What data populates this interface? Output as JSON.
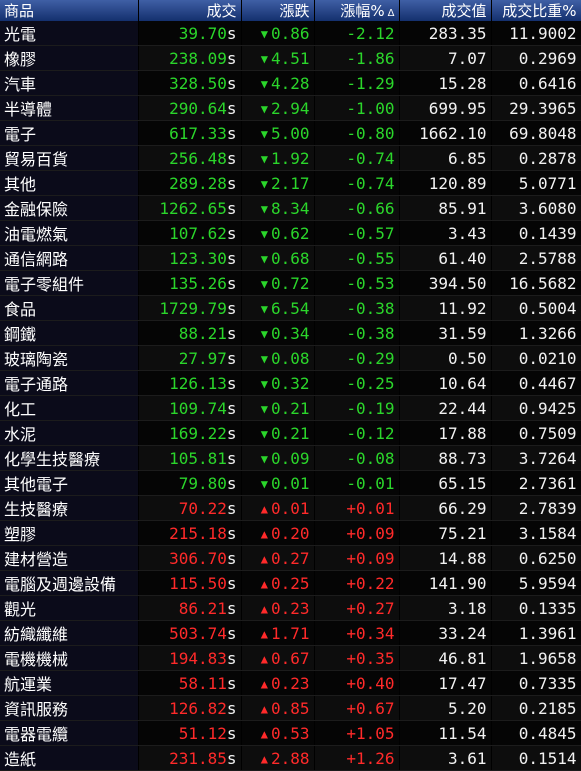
{
  "headers": [
    "商品",
    "成交",
    "漲跌",
    "漲幅%",
    "成交值",
    "成交比重%"
  ],
  "sort_indicator": "Δ",
  "colors": {
    "up": "#ff2a2a",
    "down": "#2bd62b"
  },
  "rows": [
    {
      "name": "光電",
      "price": "39.70",
      "flag": "s",
      "chg": "0.86",
      "dir": "down",
      "pct": "-2.12",
      "val": "283.35",
      "w": "11.9002"
    },
    {
      "name": "橡膠",
      "price": "238.09",
      "flag": "s",
      "chg": "4.51",
      "dir": "down",
      "pct": "-1.86",
      "val": "7.07",
      "w": "0.2969"
    },
    {
      "name": "汽車",
      "price": "328.50",
      "flag": "s",
      "chg": "4.28",
      "dir": "down",
      "pct": "-1.29",
      "val": "15.28",
      "w": "0.6416"
    },
    {
      "name": "半導體",
      "price": "290.64",
      "flag": "s",
      "chg": "2.94",
      "dir": "down",
      "pct": "-1.00",
      "val": "699.95",
      "w": "29.3965"
    },
    {
      "name": "電子",
      "price": "617.33",
      "flag": "s",
      "chg": "5.00",
      "dir": "down",
      "pct": "-0.80",
      "val": "1662.10",
      "w": "69.8048"
    },
    {
      "name": "貿易百貨",
      "price": "256.48",
      "flag": "s",
      "chg": "1.92",
      "dir": "down",
      "pct": "-0.74",
      "val": "6.85",
      "w": "0.2878"
    },
    {
      "name": "其他",
      "price": "289.28",
      "flag": "s",
      "chg": "2.17",
      "dir": "down",
      "pct": "-0.74",
      "val": "120.89",
      "w": "5.0771"
    },
    {
      "name": "金融保險",
      "price": "1262.65",
      "flag": "s",
      "chg": "8.34",
      "dir": "down",
      "pct": "-0.66",
      "val": "85.91",
      "w": "3.6080"
    },
    {
      "name": "油電燃氣",
      "price": "107.62",
      "flag": "s",
      "chg": "0.62",
      "dir": "down",
      "pct": "-0.57",
      "val": "3.43",
      "w": "0.1439"
    },
    {
      "name": "通信網路",
      "price": "123.30",
      "flag": "s",
      "chg": "0.68",
      "dir": "down",
      "pct": "-0.55",
      "val": "61.40",
      "w": "2.5788"
    },
    {
      "name": "電子零組件",
      "price": "135.26",
      "flag": "s",
      "chg": "0.72",
      "dir": "down",
      "pct": "-0.53",
      "val": "394.50",
      "w": "16.5682"
    },
    {
      "name": "食品",
      "price": "1729.79",
      "flag": "s",
      "chg": "6.54",
      "dir": "down",
      "pct": "-0.38",
      "val": "11.92",
      "w": "0.5004"
    },
    {
      "name": "鋼鐵",
      "price": "88.21",
      "flag": "s",
      "chg": "0.34",
      "dir": "down",
      "pct": "-0.38",
      "val": "31.59",
      "w": "1.3266"
    },
    {
      "name": "玻璃陶瓷",
      "price": "27.97",
      "flag": "s",
      "chg": "0.08",
      "dir": "down",
      "pct": "-0.29",
      "val": "0.50",
      "w": "0.0210"
    },
    {
      "name": "電子通路",
      "price": "126.13",
      "flag": "s",
      "chg": "0.32",
      "dir": "down",
      "pct": "-0.25",
      "val": "10.64",
      "w": "0.4467"
    },
    {
      "name": "化工",
      "price": "109.74",
      "flag": "s",
      "chg": "0.21",
      "dir": "down",
      "pct": "-0.19",
      "val": "22.44",
      "w": "0.9425"
    },
    {
      "name": "水泥",
      "price": "169.22",
      "flag": "s",
      "chg": "0.21",
      "dir": "down",
      "pct": "-0.12",
      "val": "17.88",
      "w": "0.7509"
    },
    {
      "name": "化學生技醫療",
      "price": "105.81",
      "flag": "s",
      "chg": "0.09",
      "dir": "down",
      "pct": "-0.08",
      "val": "88.73",
      "w": "3.7264"
    },
    {
      "name": "其他電子",
      "price": "79.80",
      "flag": "s",
      "chg": "0.01",
      "dir": "down",
      "pct": "-0.01",
      "val": "65.15",
      "w": "2.7361"
    },
    {
      "name": "生技醫療",
      "price": "70.22",
      "flag": "s",
      "chg": "0.01",
      "dir": "up",
      "pct": "+0.01",
      "val": "66.29",
      "w": "2.7839"
    },
    {
      "name": "塑膠",
      "price": "215.18",
      "flag": "s",
      "chg": "0.20",
      "dir": "up",
      "pct": "+0.09",
      "val": "75.21",
      "w": "3.1584"
    },
    {
      "name": "建材營造",
      "price": "306.70",
      "flag": "s",
      "chg": "0.27",
      "dir": "up",
      "pct": "+0.09",
      "val": "14.88",
      "w": "0.6250"
    },
    {
      "name": "電腦及週邊設備",
      "price": "115.50",
      "flag": "s",
      "chg": "0.25",
      "dir": "up",
      "pct": "+0.22",
      "val": "141.90",
      "w": "5.9594"
    },
    {
      "name": "觀光",
      "price": "86.21",
      "flag": "s",
      "chg": "0.23",
      "dir": "up",
      "pct": "+0.27",
      "val": "3.18",
      "w": "0.1335"
    },
    {
      "name": "紡織纖維",
      "price": "503.74",
      "flag": "s",
      "chg": "1.71",
      "dir": "up",
      "pct": "+0.34",
      "val": "33.24",
      "w": "1.3961"
    },
    {
      "name": "電機機械",
      "price": "194.83",
      "flag": "s",
      "chg": "0.67",
      "dir": "up",
      "pct": "+0.35",
      "val": "46.81",
      "w": "1.9658"
    },
    {
      "name": "航運業",
      "price": "58.11",
      "flag": "s",
      "chg": "0.23",
      "dir": "up",
      "pct": "+0.40",
      "val": "17.47",
      "w": "0.7335"
    },
    {
      "name": "資訊服務",
      "price": "126.82",
      "flag": "s",
      "chg": "0.85",
      "dir": "up",
      "pct": "+0.67",
      "val": "5.20",
      "w": "0.2185"
    },
    {
      "name": "電器電纜",
      "price": "51.12",
      "flag": "s",
      "chg": "0.53",
      "dir": "up",
      "pct": "+1.05",
      "val": "11.54",
      "w": "0.4845"
    },
    {
      "name": "造紙",
      "price": "231.85",
      "flag": "s",
      "chg": "2.88",
      "dir": "up",
      "pct": "+1.26",
      "val": "3.61",
      "w": "0.1514"
    }
  ]
}
